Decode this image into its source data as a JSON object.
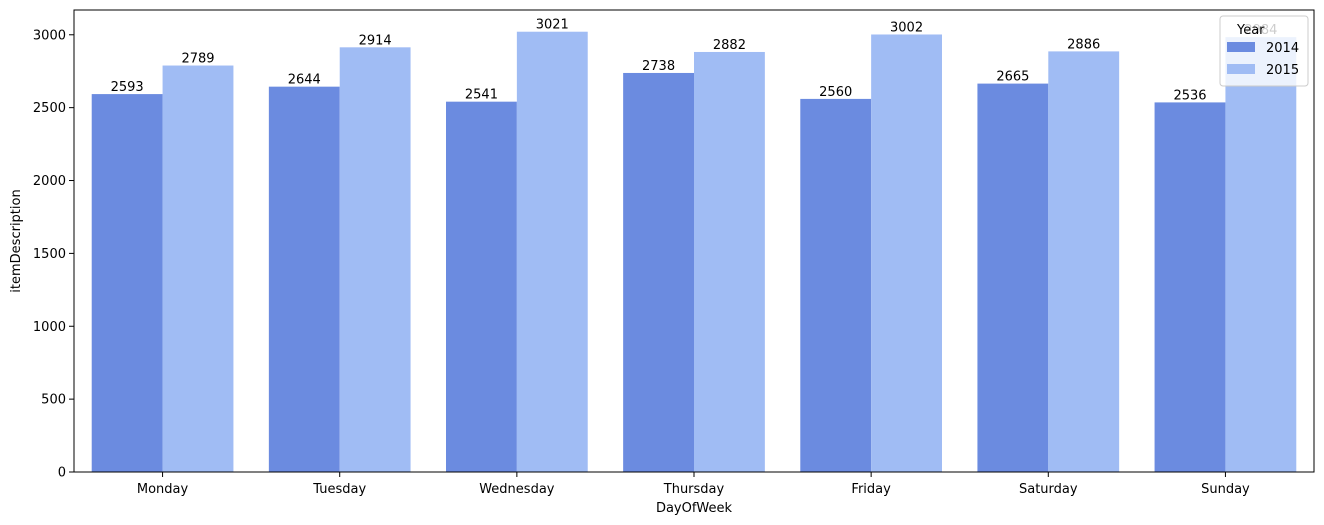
{
  "chart_data": {
    "type": "bar",
    "xlabel": "DayOfWeek",
    "ylabel": "itemDescription",
    "categories": [
      "Monday",
      "Tuesday",
      "Wednesday",
      "Thursday",
      "Friday",
      "Saturday",
      "Sunday"
    ],
    "series": [
      {
        "name": "2014",
        "values": [
          2593,
          2644,
          2541,
          2738,
          2560,
          2665,
          2536
        ],
        "color": "#6b8be0"
      },
      {
        "name": "2015",
        "values": [
          2789,
          2914,
          3021,
          2882,
          3002,
          2886,
          2984
        ],
        "color": "#a0bcf4"
      }
    ],
    "ylim": [
      0,
      3170
    ],
    "yticks": [
      0,
      500,
      1000,
      1500,
      2000,
      2500,
      3000
    ],
    "grid": false,
    "legend": {
      "title": "Year",
      "placement": "top-right"
    }
  }
}
